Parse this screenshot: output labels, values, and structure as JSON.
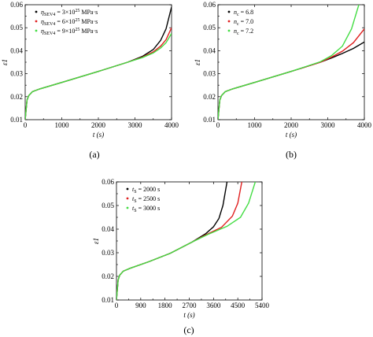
{
  "chart_data": [
    {
      "panel": "(a)",
      "type": "line",
      "xlabel": "t (s)",
      "ylabel": "ε1",
      "xlim": [
        0,
        4000
      ],
      "ylim": [
        0.01,
        0.06
      ],
      "xticks": [
        "0",
        "1000",
        "2000",
        "3000",
        "4000"
      ],
      "yticks": [
        "0.01",
        "0.02",
        "0.03",
        "0.04",
        "0.05",
        "0.06"
      ],
      "legend_position": "top-left",
      "series": [
        {
          "name": "ηSEV4 = 3×10^25 MPa·s",
          "legend_main": "η",
          "legend_sub": "SEV4",
          "legend_rest": " = 3×10",
          "legend_sup": "25",
          "legend_tail": " MPa·s",
          "color": "#000000",
          "x": [
            0,
            50,
            100,
            200,
            400,
            1000,
            2000,
            2800,
            3200,
            3500,
            3700,
            3850,
            4000
          ],
          "y": [
            0.01,
            0.0185,
            0.0205,
            0.0222,
            0.0234,
            0.0262,
            0.031,
            0.035,
            0.0375,
            0.0405,
            0.0445,
            0.0495,
            0.059
          ]
        },
        {
          "name": "ηSEV4 = 6×10^25 MPa·s",
          "legend_main": "η",
          "legend_sub": "SEV4",
          "legend_rest": " = 6×10",
          "legend_sup": "25",
          "legend_tail": " MPa·s",
          "color": "#e02020",
          "x": [
            0,
            50,
            100,
            200,
            400,
            1000,
            2000,
            2800,
            3200,
            3500,
            3700,
            3850,
            4000
          ],
          "y": [
            0.01,
            0.0185,
            0.0205,
            0.0222,
            0.0234,
            0.0262,
            0.031,
            0.035,
            0.0372,
            0.0395,
            0.042,
            0.0448,
            0.05
          ]
        },
        {
          "name": "ηSEV4 = 9×10^25 MPa·s",
          "legend_main": "η",
          "legend_sub": "SEV4",
          "legend_rest": " = 9×10",
          "legend_sup": "25",
          "legend_tail": " MPa·s",
          "color": "#44dd44",
          "x": [
            0,
            50,
            100,
            200,
            400,
            1000,
            2000,
            2800,
            3200,
            3500,
            3700,
            3850,
            4000
          ],
          "y": [
            0.01,
            0.0185,
            0.0205,
            0.0222,
            0.0234,
            0.0262,
            0.031,
            0.035,
            0.037,
            0.039,
            0.0412,
            0.0435,
            0.0475
          ]
        }
      ]
    },
    {
      "panel": "(b)",
      "type": "line",
      "xlabel": "t (s)",
      "ylabel": "ε1",
      "xlim": [
        0,
        4000
      ],
      "ylim": [
        0.01,
        0.06
      ],
      "xticks": [
        "0",
        "1000",
        "2000",
        "3000",
        "4000"
      ],
      "yticks": [
        "0.01",
        "0.02",
        "0.03",
        "0.04",
        "0.05",
        "0.06"
      ],
      "legend_position": "top-left",
      "series": [
        {
          "name": "nc = 6.8",
          "legend_main": "n",
          "legend_sub": "c",
          "legend_rest": " = 6.8",
          "legend_sup": "",
          "legend_tail": "",
          "color": "#000000",
          "x": [
            0,
            50,
            100,
            200,
            400,
            1000,
            2000,
            2800,
            3100,
            3400,
            3700,
            4000
          ],
          "y": [
            0.01,
            0.0185,
            0.0205,
            0.0222,
            0.0234,
            0.0262,
            0.031,
            0.035,
            0.0368,
            0.0388,
            0.041,
            0.0438
          ]
        },
        {
          "name": "nc = 7.0",
          "legend_main": "n",
          "legend_sub": "c",
          "legend_rest": " = 7.0",
          "legend_sup": "",
          "legend_tail": "",
          "color": "#e02020",
          "x": [
            0,
            50,
            100,
            200,
            400,
            1000,
            2000,
            2800,
            3100,
            3400,
            3700,
            4000
          ],
          "y": [
            0.01,
            0.0185,
            0.0205,
            0.0222,
            0.0234,
            0.0262,
            0.031,
            0.035,
            0.0372,
            0.0398,
            0.0435,
            0.0495
          ]
        },
        {
          "name": "nc = 7.2",
          "legend_main": "n",
          "legend_sub": "c",
          "legend_rest": " = 7.2",
          "legend_sup": "",
          "legend_tail": "",
          "color": "#44dd44",
          "x": [
            0,
            50,
            100,
            200,
            400,
            1000,
            2000,
            2800,
            3100,
            3400,
            3650,
            3850
          ],
          "y": [
            0.01,
            0.0185,
            0.0205,
            0.0222,
            0.0234,
            0.0262,
            0.031,
            0.0352,
            0.0378,
            0.042,
            0.0495,
            0.06
          ]
        }
      ]
    },
    {
      "panel": "(c)",
      "type": "line",
      "xlabel": "t (s)",
      "ylabel": "ε1",
      "xlim": [
        0,
        5400
      ],
      "ylim": [
        0.01,
        0.06
      ],
      "xticks": [
        "0",
        "900",
        "1800",
        "2700",
        "3600",
        "4500",
        "5400"
      ],
      "yticks": [
        "0.01",
        "0.02",
        "0.03",
        "0.04",
        "0.05",
        "0.06"
      ],
      "legend_position": "top-left",
      "series": [
        {
          "name": "tS = 2000 s",
          "legend_main": "t",
          "legend_sub": "S",
          "legend_rest": " = 2000 s",
          "legend_sup": "",
          "legend_tail": "",
          "color": "#000000",
          "x": [
            0,
            60,
            120,
            250,
            500,
            1200,
            2000,
            2800,
            3300,
            3600,
            3800,
            3950,
            4100
          ],
          "y": [
            0.01,
            0.0185,
            0.0205,
            0.0222,
            0.0234,
            0.0262,
            0.0298,
            0.0345,
            0.038,
            0.041,
            0.0445,
            0.05,
            0.06
          ]
        },
        {
          "name": "tS = 2500 s",
          "legend_main": "t",
          "legend_sub": "S",
          "legend_rest": " = 2500 s",
          "legend_sup": "",
          "legend_tail": "",
          "color": "#e02020",
          "x": [
            0,
            60,
            120,
            250,
            500,
            1200,
            2000,
            2800,
            3300,
            3900,
            4300,
            4500,
            4650
          ],
          "y": [
            0.01,
            0.0185,
            0.0205,
            0.0222,
            0.0234,
            0.0262,
            0.0298,
            0.0345,
            0.0375,
            0.0408,
            0.0455,
            0.051,
            0.06
          ]
        },
        {
          "name": "tS = 3000 s",
          "legend_main": "t",
          "legend_sub": "S",
          "legend_rest": " = 3000 s",
          "legend_sup": "",
          "legend_tail": "",
          "color": "#44dd44",
          "x": [
            0,
            60,
            120,
            250,
            500,
            1200,
            2000,
            2800,
            3400,
            4100,
            4600,
            4900,
            5150
          ],
          "y": [
            0.01,
            0.0185,
            0.0205,
            0.0222,
            0.0234,
            0.0262,
            0.0298,
            0.0345,
            0.0378,
            0.0412,
            0.045,
            0.051,
            0.06
          ]
        }
      ]
    }
  ]
}
